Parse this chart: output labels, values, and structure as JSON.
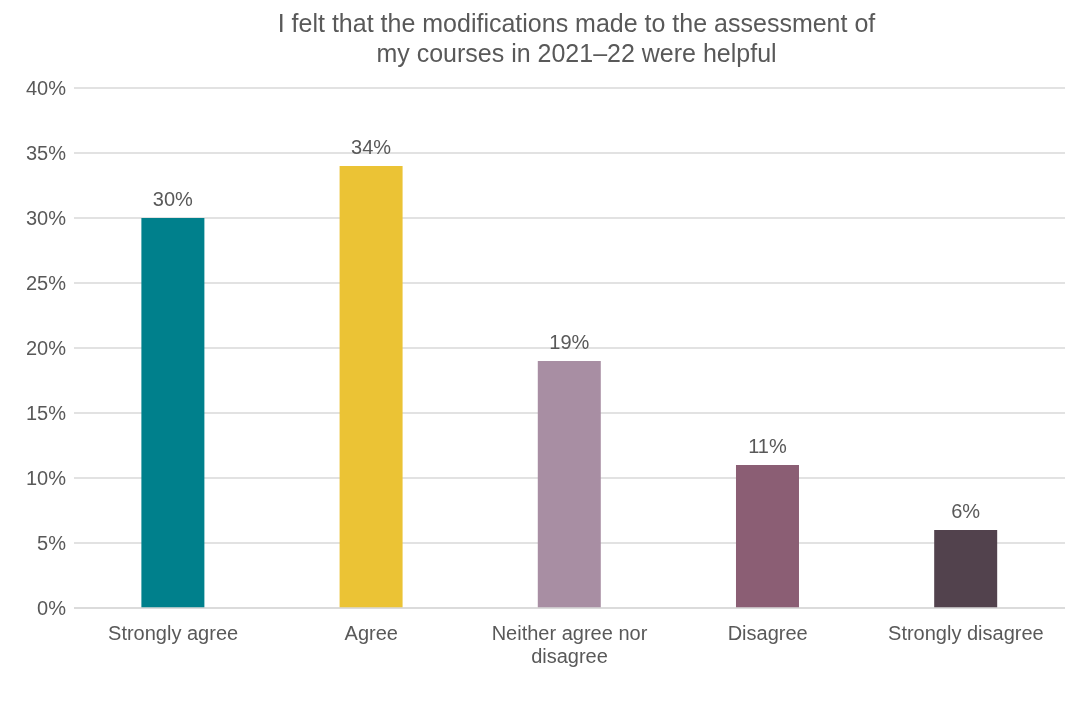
{
  "chart_data": {
    "type": "bar",
    "title": "I felt that the modifications made to the assessment of my courses in 2021–22 were helpful",
    "categories": [
      "Strongly agree",
      "Agree",
      "Neither agree nor disagree",
      "Disagree",
      "Strongly disagree"
    ],
    "values": [
      30,
      34,
      19,
      11,
      6
    ],
    "colors": [
      "#00808c",
      "#ebc335",
      "#a88ea3",
      "#8b5e74",
      "#52424d"
    ],
    "value_labels": [
      "30%",
      "34%",
      "19%",
      "11%",
      "6%"
    ],
    "ylim": [
      0,
      40
    ],
    "yticks": [
      {
        "value": 0,
        "label": "0%"
      },
      {
        "value": 5,
        "label": "5%"
      },
      {
        "value": 10,
        "label": "10%"
      },
      {
        "value": 15,
        "label": "15%"
      },
      {
        "value": 20,
        "label": "20%"
      },
      {
        "value": 25,
        "label": "25%"
      },
      {
        "value": 30,
        "label": "30%"
      },
      {
        "value": 35,
        "label": "35%"
      },
      {
        "value": 40,
        "label": "40%"
      }
    ],
    "grid": "y",
    "legend": false
  }
}
